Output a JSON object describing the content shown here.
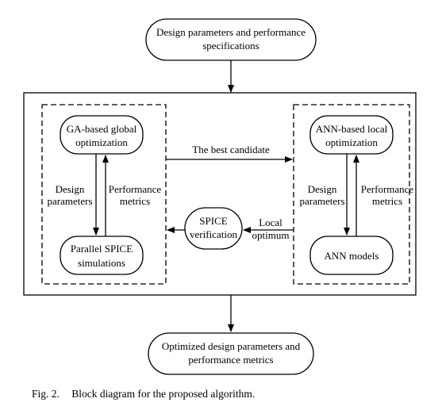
{
  "nodes": {
    "design_specs": {
      "line1": "Design parameters and performance",
      "line2": "specifications"
    },
    "ga_global": {
      "line1": "GA-based global",
      "line2": "optimization"
    },
    "parallel_spice": {
      "line1": "Parallel SPICE",
      "line2": "simulations"
    },
    "ann_local": {
      "line1": "ANN-based local",
      "line2": "optimization"
    },
    "ann_models": {
      "label": "ANN models"
    },
    "spice_verification": {
      "line1": "SPICE",
      "line2": "verification"
    },
    "optimized_output": {
      "line1": "Optimized design parameters and",
      "line2": "performance metrics"
    }
  },
  "edges": {
    "best_candidate": "The best candidate",
    "local_optimum": {
      "line1": "Local",
      "line2": "optimum"
    },
    "left_design_params": {
      "line1": "Design",
      "line2": "parameters"
    },
    "left_perf_metrics": {
      "line1": "Performance",
      "line2": "metrics"
    },
    "right_design_params": {
      "line1": "Design",
      "line2": "parameters"
    },
    "right_perf_metrics": {
      "line1": "Performance",
      "line2": "metrics"
    }
  },
  "caption": {
    "figure": "Fig. 2.",
    "text": "Block diagram for the proposed algorithm."
  }
}
